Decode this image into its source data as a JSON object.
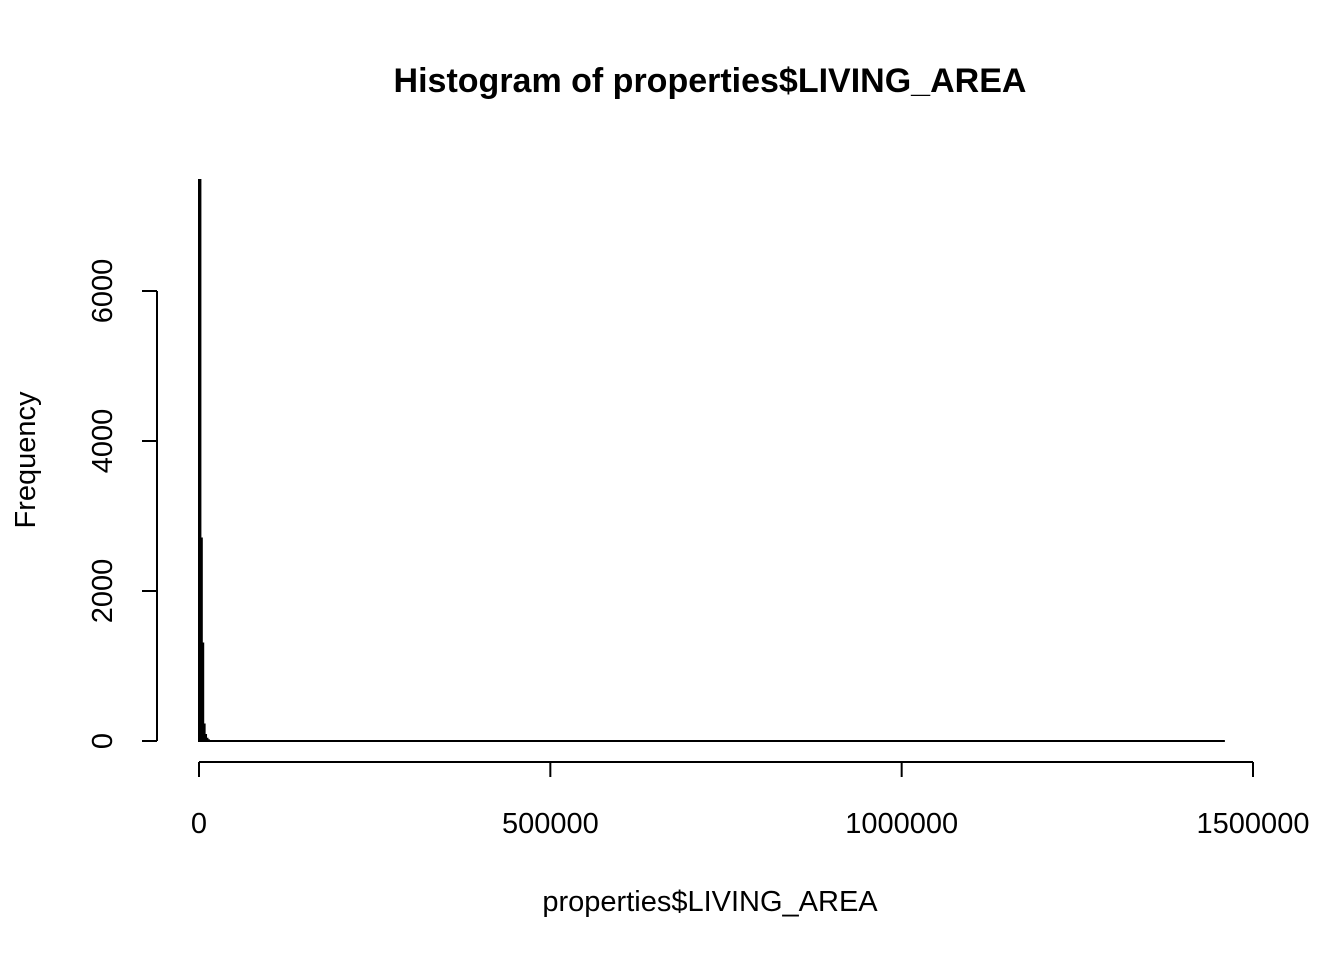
{
  "chart_data": {
    "type": "bar",
    "title": "Histogram of properties$LIVING_AREA",
    "xlabel": "properties$LIVING_AREA",
    "ylabel": "Frequency",
    "x_ticks": [
      0,
      500000,
      1000000,
      1500000
    ],
    "x_tick_labels": [
      "0",
      "500000",
      "1000000",
      "1500000"
    ],
    "y_ticks": [
      0,
      2000,
      4000,
      6000
    ],
    "y_tick_labels": [
      "0",
      "2000",
      "4000",
      "6000"
    ],
    "xlim": [
      0,
      1460000
    ],
    "ylim": [
      0,
      7500
    ],
    "bin_width": 2000,
    "bins": [
      {
        "start": 0,
        "end": 2000,
        "count": 7480
      },
      {
        "start": 2000,
        "end": 4000,
        "count": 2700
      },
      {
        "start": 4000,
        "end": 6000,
        "count": 1300
      },
      {
        "start": 6000,
        "end": 8000,
        "count": 220
      },
      {
        "start": 8000,
        "end": 10000,
        "count": 80
      },
      {
        "start": 10000,
        "end": 12000,
        "count": 30
      },
      {
        "start": 12000,
        "end": 14000,
        "count": 10
      }
    ],
    "baseline_extent": [
      0,
      1460000
    ],
    "grid": false,
    "legend": "none",
    "colors": {
      "bar_fill": "#ffffff",
      "bar_stroke": "#000000",
      "axis": "#000000"
    }
  }
}
